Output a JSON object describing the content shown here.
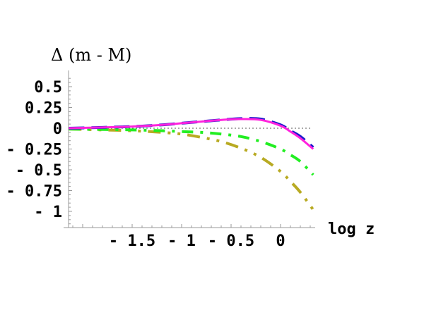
{
  "chart_data": {
    "type": "line",
    "title": "",
    "xlabel": "log z",
    "ylabel": "Δ (m - M)",
    "xlim": [
      -2.14,
      0.33
    ],
    "ylim": [
      -1.2,
      0.65
    ],
    "xticks": [
      -1.5,
      -1,
      -0.5,
      0
    ],
    "xtick_labels": [
      "- 1.5",
      "- 1",
      "- 0.5",
      "0"
    ],
    "yticks": [
      0.5,
      0.25,
      0,
      -0.25,
      -0.5,
      -0.75,
      -1
    ],
    "ytick_labels": [
      "0.5",
      "0.25",
      "0",
      "- 0.25",
      "- 0.5",
      "- 0.75",
      "- 1"
    ],
    "grid": false,
    "legend": null,
    "reference_line": {
      "y": 0,
      "style": "dotted",
      "color": "#555555"
    },
    "x": [
      -2.14,
      -1.8,
      -1.5,
      -1.2,
      -1.0,
      -0.8,
      -0.6,
      -0.4,
      -0.2,
      0.0,
      0.1,
      0.2,
      0.33
    ],
    "series": [
      {
        "name": "magenta-solid",
        "color": "#ff22dd",
        "dash": "solid",
        "values": [
          0.0,
          0.01,
          0.02,
          0.04,
          0.06,
          0.08,
          0.1,
          0.11,
          0.1,
          0.03,
          -0.04,
          -0.12,
          -0.25
        ]
      },
      {
        "name": "blue-dashed",
        "color": "#1a1acc",
        "dash": "long-dash",
        "values": [
          0.0,
          0.01,
          0.02,
          0.04,
          0.06,
          0.08,
          0.1,
          0.115,
          0.11,
          0.04,
          -0.03,
          -0.1,
          -0.23
        ]
      },
      {
        "name": "green-dashdot",
        "color": "#22ee22",
        "dash": "dash-dot",
        "values": [
          -0.01,
          -0.015,
          -0.02,
          -0.03,
          -0.04,
          -0.05,
          -0.07,
          -0.1,
          -0.16,
          -0.25,
          -0.32,
          -0.4,
          -0.56
        ]
      },
      {
        "name": "olive-dashdotdot",
        "color": "#b8aa22",
        "dash": "dash-dot-dot",
        "values": [
          -0.01,
          -0.02,
          -0.03,
          -0.05,
          -0.07,
          -0.11,
          -0.16,
          -0.24,
          -0.35,
          -0.52,
          -0.64,
          -0.77,
          -0.98
        ]
      }
    ]
  }
}
